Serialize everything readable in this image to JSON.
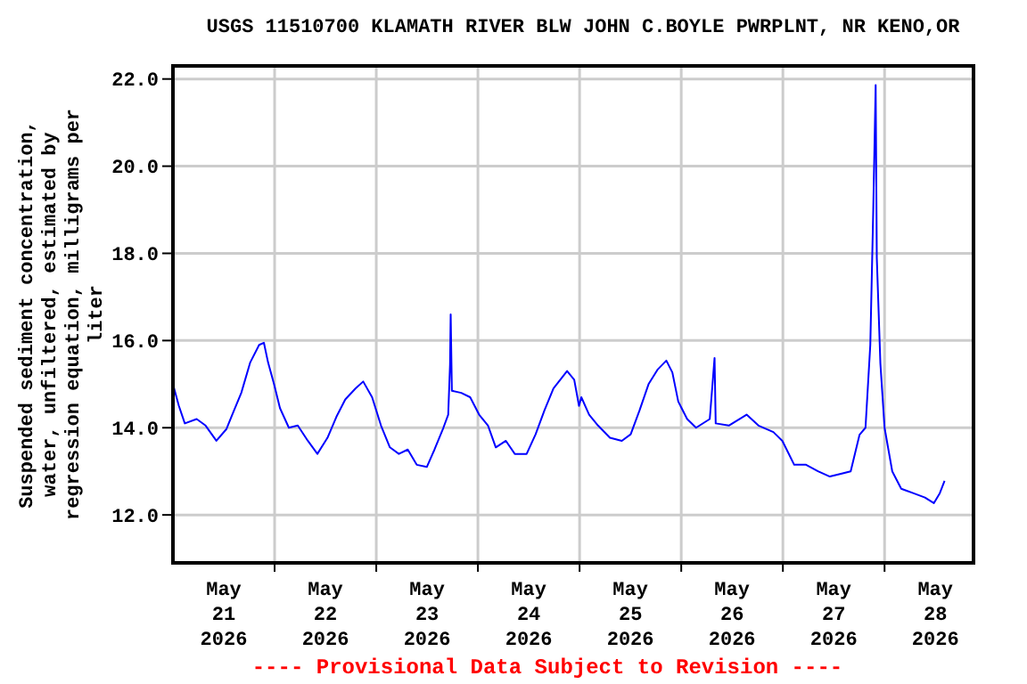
{
  "chart_data": {
    "type": "line",
    "title": "USGS 11510700 KLAMATH RIVER BLW JOHN C.BOYLE PWRPLNT, NR KENO,OR",
    "ylabel": "Suspended sediment concentration, water, unfiltered, estimated by regression equation, milligrams per liter",
    "annotations": [
      "---- Provisional Data Subject to Revision ----"
    ],
    "legend": false,
    "grid": true,
    "xlim": [
      "2026-05-21T00:00",
      "2026-05-28T21:00"
    ],
    "xticks": [
      {
        "value": "2026-05-21T12:00",
        "label": "May 21 2026"
      },
      {
        "value": "2026-05-22T00:00",
        "label": null
      },
      {
        "value": "2026-05-22T12:00",
        "label": "May 22 2026"
      },
      {
        "value": "2026-05-23T00:00",
        "label": null
      },
      {
        "value": "2026-05-23T12:00",
        "label": "May 23 2026"
      },
      {
        "value": "2026-05-24T00:00",
        "label": null
      },
      {
        "value": "2026-05-24T12:00",
        "label": "May 24 2026"
      },
      {
        "value": "2026-05-25T00:00",
        "label": null
      },
      {
        "value": "2026-05-25T12:00",
        "label": "May 25 2026"
      },
      {
        "value": "2026-05-26T00:00",
        "label": null
      },
      {
        "value": "2026-05-26T12:00",
        "label": "May 26 2026"
      },
      {
        "value": "2026-05-27T00:00",
        "label": null
      },
      {
        "value": "2026-05-27T12:00",
        "label": "May 27 2026"
      },
      {
        "value": "2026-05-28T00:00",
        "label": null
      },
      {
        "value": "2026-05-28T12:00",
        "label": "May 28 2026"
      }
    ],
    "ylim": [
      10.9,
      22.3
    ],
    "yticks": [
      {
        "value": 12,
        "label": "12.0"
      },
      {
        "value": 14,
        "label": "14.0"
      },
      {
        "value": 16,
        "label": "16.0"
      },
      {
        "value": 18,
        "label": "18.0"
      },
      {
        "value": 20,
        "label": "20.0"
      },
      {
        "value": 22,
        "label": "22.0"
      }
    ],
    "series": [
      {
        "color": "#0000ff",
        "x": [
          "2026-05-21T00:00",
          "2026-05-21T01:24",
          "2026-05-21T02:48",
          "2026-05-21T05:36",
          "2026-05-21T07:42",
          "2026-05-21T10:15",
          "2026-05-21T12:38",
          "2026-05-21T14:00",
          "2026-05-21T16:08",
          "2026-05-21T18:15",
          "2026-05-21T20:21",
          "2026-05-21T21:28",
          "2026-05-21T22:27",
          "2026-05-21T23:52",
          "2026-05-22T01:16",
          "2026-05-22T03:22",
          "2026-05-22T05:28",
          "2026-05-22T07:51",
          "2026-05-22T10:06",
          "2026-05-22T12:29",
          "2026-05-22T14:35",
          "2026-05-22T16:41",
          "2026-05-22T19:05",
          "2026-05-22T20:55",
          "2026-05-22T23:01",
          "2026-05-23T01:07",
          "2026-05-23T03:13",
          "2026-05-23T05:20",
          "2026-05-23T07:26",
          "2026-05-23T09:33",
          "2026-05-23T11:56",
          "2026-05-23T13:45",
          "2026-05-23T15:51",
          "2026-05-23T16:59",
          "2026-05-23T17:25",
          "2026-05-23T17:34",
          "2026-05-23T17:51",
          "2026-05-23T20:04",
          "2026-05-23T22:10",
          "2026-05-24T00:17",
          "2026-05-24T02:23",
          "2026-05-24T04:13",
          "2026-05-24T06:36",
          "2026-05-24T08:42",
          "2026-05-24T11:30",
          "2026-05-24T13:37",
          "2026-05-24T15:43",
          "2026-05-24T17:50",
          "2026-05-24T21:03",
          "2026-05-24T22:44",
          "2026-05-24T23:52",
          "2026-05-25T00:25",
          "2026-05-25T02:15",
          "2026-05-25T04:21",
          "2026-05-25T07:10",
          "2026-05-25T09:58",
          "2026-05-25T12:04",
          "2026-05-25T14:10",
          "2026-05-25T16:17",
          "2026-05-25T18:23",
          "2026-05-25T20:29",
          "2026-05-25T21:54",
          "2026-05-25T23:18",
          "2026-05-26T01:24",
          "2026-05-26T03:30",
          "2026-05-26T06:44",
          "2026-05-26T07:52",
          "2026-05-26T08:08",
          "2026-05-26T11:14",
          "2026-05-26T15:26",
          "2026-05-26T18:14",
          "2026-05-26T21:45",
          "2026-05-26T23:52",
          "2026-05-27T02:40",
          "2026-05-27T05:28",
          "2026-05-27T08:17",
          "2026-05-27T11:05",
          "2026-05-27T13:54",
          "2026-05-27T16:00",
          "2026-05-27T18:06",
          "2026-05-27T19:30",
          "2026-05-27T20:38",
          "2026-05-27T21:20",
          "2026-05-27T21:54",
          "2026-05-27T22:10",
          "2026-05-27T23:01",
          "2026-05-28T00:00",
          "2026-05-28T01:49",
          "2026-05-28T03:56",
          "2026-05-28T06:44",
          "2026-05-28T09:32",
          "2026-05-28T11:38",
          "2026-05-28T13:03",
          "2026-05-28T14:10"
        ],
        "values": [
          15.0,
          14.5,
          14.1,
          14.2,
          14.05,
          13.7,
          13.97,
          14.3,
          14.8,
          15.5,
          15.9,
          15.95,
          15.5,
          15.0,
          14.45,
          14.0,
          14.05,
          13.7,
          13.4,
          13.77,
          14.25,
          14.65,
          14.9,
          15.06,
          14.7,
          14.05,
          13.55,
          13.4,
          13.5,
          13.15,
          13.1,
          13.5,
          14.0,
          14.3,
          15.45,
          16.6,
          14.85,
          14.8,
          14.7,
          14.3,
          14.05,
          13.55,
          13.7,
          13.4,
          13.4,
          13.85,
          14.4,
          14.9,
          15.3,
          15.1,
          14.5,
          14.7,
          14.3,
          14.05,
          13.77,
          13.7,
          13.85,
          14.4,
          15.0,
          15.33,
          15.54,
          15.27,
          14.6,
          14.2,
          14.0,
          14.2,
          15.6,
          14.1,
          14.05,
          14.3,
          14.05,
          13.9,
          13.7,
          13.15,
          13.15,
          13.0,
          12.88,
          12.95,
          13.0,
          13.84,
          14.0,
          15.9,
          19.0,
          21.86,
          17.9,
          15.47,
          14.0,
          13.0,
          12.6,
          12.5,
          12.4,
          12.27,
          12.5,
          12.78
        ]
      }
    ]
  }
}
